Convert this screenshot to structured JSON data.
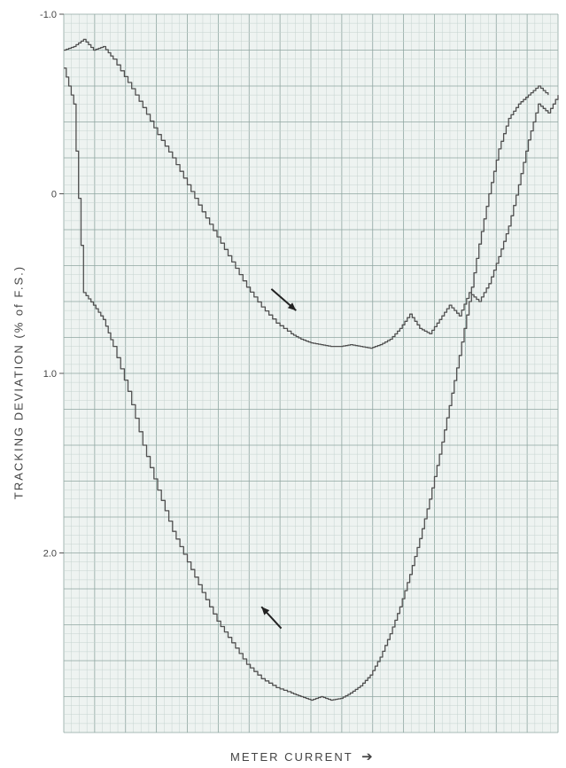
{
  "chart_data": {
    "type": "line",
    "title": "",
    "xlabel": "METER CURRENT",
    "xlabel_arrow": "➔",
    "ylabel": "TRACKING DEVIATION (% of F.S.)",
    "ylim": [
      -1.0,
      3.0
    ],
    "y_inverted": true,
    "yticks": [
      "-1.0",
      "0",
      "1.0",
      "2.0"
    ],
    "ytick_values": [
      -1.0,
      0,
      1.0,
      2.0
    ],
    "grid": true,
    "colors": {
      "grid_minor": "#c5d3d0",
      "grid_major": "#8fa6a1",
      "trace": "#505050",
      "paper": "#eef3f1"
    },
    "series": [
      {
        "direction": "increasing",
        "x": [
          0.0,
          0.02,
          0.04,
          0.06,
          0.08,
          0.1,
          0.13,
          0.16,
          0.19,
          0.22,
          0.25,
          0.28,
          0.31,
          0.34,
          0.37,
          0.4,
          0.43,
          0.46,
          0.48,
          0.5,
          0.52,
          0.54,
          0.56,
          0.58,
          0.6,
          0.62,
          0.64,
          0.66,
          0.68,
          0.7,
          0.72,
          0.74,
          0.76,
          0.78,
          0.8,
          0.82,
          0.84,
          0.86,
          0.88,
          0.9,
          0.92,
          0.94,
          0.96,
          0.98,
          1.0
        ],
        "y": [
          -0.8,
          -0.82,
          -0.86,
          -0.8,
          -0.82,
          -0.75,
          -0.62,
          -0.48,
          -0.33,
          -0.2,
          -0.05,
          0.1,
          0.24,
          0.38,
          0.52,
          0.63,
          0.72,
          0.78,
          0.81,
          0.83,
          0.84,
          0.85,
          0.85,
          0.84,
          0.85,
          0.86,
          0.84,
          0.81,
          0.75,
          0.67,
          0.75,
          0.78,
          0.7,
          0.62,
          0.68,
          0.55,
          0.6,
          0.5,
          0.35,
          0.18,
          -0.05,
          -0.3,
          -0.5,
          -0.45,
          -0.55
        ]
      },
      {
        "direction": "decreasing",
        "x": [
          0.0,
          0.02,
          0.04,
          0.06,
          0.08,
          0.1,
          0.13,
          0.16,
          0.19,
          0.22,
          0.25,
          0.28,
          0.31,
          0.34,
          0.37,
          0.4,
          0.43,
          0.46,
          0.48,
          0.5,
          0.52,
          0.54,
          0.56,
          0.58,
          0.6,
          0.62,
          0.64,
          0.66,
          0.68,
          0.7,
          0.72,
          0.74,
          0.76,
          0.78,
          0.8,
          0.82,
          0.84,
          0.86,
          0.88,
          0.9,
          0.92,
          0.94,
          0.96,
          0.98
        ],
        "y": [
          -0.7,
          -0.5,
          0.55,
          0.62,
          0.7,
          0.85,
          1.1,
          1.4,
          1.65,
          1.88,
          2.05,
          2.22,
          2.38,
          2.5,
          2.62,
          2.7,
          2.75,
          2.78,
          2.8,
          2.82,
          2.8,
          2.82,
          2.81,
          2.78,
          2.74,
          2.68,
          2.58,
          2.45,
          2.3,
          2.12,
          1.92,
          1.7,
          1.45,
          1.18,
          0.9,
          0.6,
          0.28,
          0.0,
          -0.25,
          -0.42,
          -0.5,
          -0.55,
          -0.6,
          -0.55
        ]
      }
    ],
    "arrows": [
      {
        "direction": "down-right",
        "x0": 0.42,
        "y0": 0.53,
        "x1": 0.47,
        "y1": 0.65
      },
      {
        "direction": "up-left",
        "x0": 0.44,
        "y0": 2.42,
        "x1": 0.4,
        "y1": 2.3
      }
    ]
  }
}
